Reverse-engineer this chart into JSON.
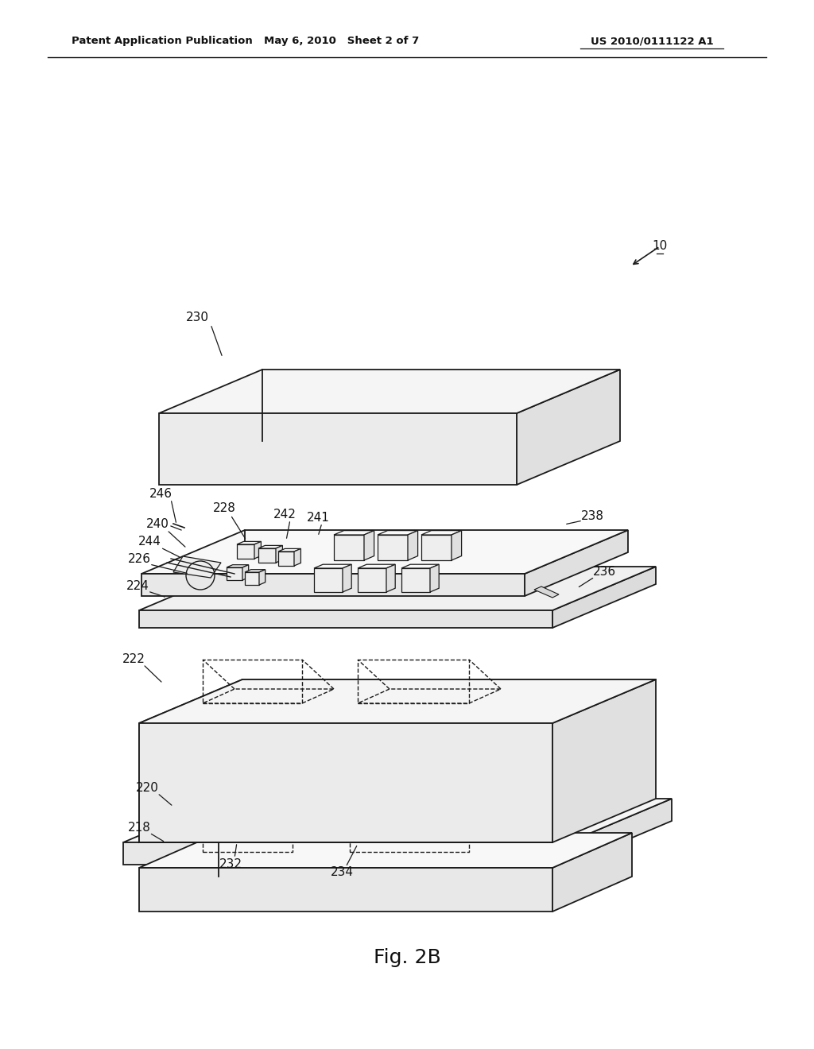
{
  "header_left": "Patent Application Publication",
  "header_mid": "May 6, 2010   Sheet 2 of 7",
  "header_right": "US 2010/0111122 A1",
  "fig_label": "Fig. 2B",
  "bg_color": "#ffffff",
  "line_color": "#1a1a1a"
}
